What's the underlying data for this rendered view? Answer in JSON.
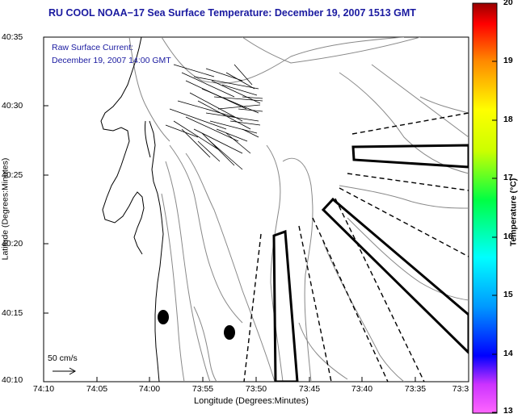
{
  "title": "RU COOL  NOAA−17  Sea Surface Temperature:  December 19, 2007 1513 GMT",
  "current_label": "Raw Surface Current:",
  "current_time": "December 19, 2007 14:00 GMT",
  "scale_label": "50 cm/s",
  "axes": {
    "x_label": "Longitude (Degrees:Minutes)",
    "y_label": "Latitude (Degrees:Minutes)",
    "x_ticks": [
      "74:10",
      "74:05",
      "74:00",
      "73:55",
      "73:50",
      "73:45",
      "73:40",
      "73:35",
      "73:3"
    ],
    "y_ticks": [
      "40:35",
      "40:30",
      "40:25",
      "40:20",
      "40:15",
      "40:10"
    ]
  },
  "colorbar": {
    "label": "Temperature (°C)",
    "ticks": [
      "20",
      "19",
      "18",
      "17",
      "16",
      "15",
      "14",
      "13"
    ],
    "colors": [
      "#8b0000",
      "#ff0000",
      "#ff8c00",
      "#ffff00",
      "#00ff00",
      "#00ffff",
      "#0000ff",
      "#ff00ff"
    ]
  },
  "map": {
    "land_color": "#ffffff",
    "contour_color": "#888888",
    "current_vector_color": "#000000"
  }
}
